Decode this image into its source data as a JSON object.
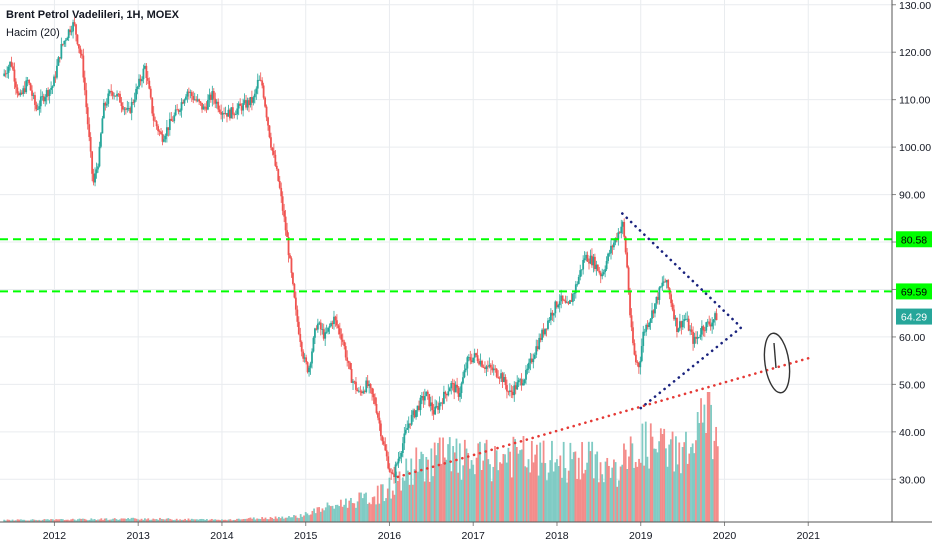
{
  "chart_data": {
    "type": "candlestick",
    "title": "Brent Petrol Vadelileri, 1H, MOEX",
    "subtitle": "Hacim (20)",
    "x_ticks": [
      "2012",
      "2013",
      "2014",
      "2015",
      "2016",
      "2017",
      "2018",
      "2019",
      "2020",
      "2021"
    ],
    "y_ticks": [
      "130.00",
      "120.00",
      "110.00",
      "100.00",
      "90.00",
      "80.00",
      "70.00",
      "60.00",
      "50.00",
      "40.00",
      "30.00"
    ],
    "ylim": [
      21,
      131
    ],
    "xlim": [
      2011.35,
      2022.0
    ],
    "price_series": [
      [
        2011.4,
        115
      ],
      [
        2011.5,
        118
      ],
      [
        2011.6,
        110
      ],
      [
        2011.7,
        114
      ],
      [
        2011.8,
        108
      ],
      [
        2011.9,
        111
      ],
      [
        2012.0,
        113
      ],
      [
        2012.1,
        121
      ],
      [
        2012.2,
        125
      ],
      [
        2012.25,
        126
      ],
      [
        2012.35,
        118
      ],
      [
        2012.45,
        98
      ],
      [
        2012.48,
        92
      ],
      [
        2012.55,
        98
      ],
      [
        2012.6,
        108
      ],
      [
        2012.7,
        112
      ],
      [
        2012.8,
        110
      ],
      [
        2012.9,
        107
      ],
      [
        2013.0,
        112
      ],
      [
        2013.1,
        117
      ],
      [
        2013.2,
        106
      ],
      [
        2013.3,
        102
      ],
      [
        2013.4,
        105
      ],
      [
        2013.5,
        108
      ],
      [
        2013.6,
        112
      ],
      [
        2013.7,
        110
      ],
      [
        2013.8,
        108
      ],
      [
        2013.9,
        111
      ],
      [
        2014.0,
        108
      ],
      [
        2014.1,
        107
      ],
      [
        2014.2,
        108
      ],
      [
        2014.3,
        109
      ],
      [
        2014.4,
        110
      ],
      [
        2014.45,
        114
      ],
      [
        2014.5,
        113
      ],
      [
        2014.55,
        107
      ],
      [
        2014.6,
        101
      ],
      [
        2014.7,
        92
      ],
      [
        2014.8,
        80
      ],
      [
        2014.9,
        65
      ],
      [
        2015.0,
        55
      ],
      [
        2015.05,
        53
      ],
      [
        2015.15,
        63
      ],
      [
        2015.25,
        60
      ],
      [
        2015.35,
        64
      ],
      [
        2015.45,
        60
      ],
      [
        2015.55,
        52
      ],
      [
        2015.65,
        48
      ],
      [
        2015.75,
        50
      ],
      [
        2015.85,
        46
      ],
      [
        2015.95,
        37
      ],
      [
        2016.05,
        30
      ],
      [
        2016.15,
        36
      ],
      [
        2016.25,
        42
      ],
      [
        2016.35,
        45
      ],
      [
        2016.45,
        48
      ],
      [
        2016.55,
        44
      ],
      [
        2016.65,
        47
      ],
      [
        2016.75,
        50
      ],
      [
        2016.85,
        48
      ],
      [
        2016.95,
        55
      ],
      [
        2017.05,
        56
      ],
      [
        2017.15,
        54
      ],
      [
        2017.25,
        53
      ],
      [
        2017.35,
        52
      ],
      [
        2017.45,
        48
      ],
      [
        2017.55,
        50
      ],
      [
        2017.65,
        52
      ],
      [
        2017.75,
        57
      ],
      [
        2017.85,
        61
      ],
      [
        2017.95,
        65
      ],
      [
        2018.05,
        68
      ],
      [
        2018.15,
        66
      ],
      [
        2018.25,
        71
      ],
      [
        2018.35,
        77
      ],
      [
        2018.45,
        76
      ],
      [
        2018.55,
        73
      ],
      [
        2018.65,
        78
      ],
      [
        2018.75,
        82
      ],
      [
        2018.8,
        84
      ],
      [
        2018.85,
        76
      ],
      [
        2018.9,
        62
      ],
      [
        2018.95,
        55
      ],
      [
        2019.0,
        54
      ],
      [
        2019.05,
        61
      ],
      [
        2019.15,
        65
      ],
      [
        2019.25,
        70
      ],
      [
        2019.3,
        72
      ],
      [
        2019.35,
        70
      ],
      [
        2019.45,
        62
      ],
      [
        2019.55,
        64
      ],
      [
        2019.65,
        59
      ],
      [
        2019.7,
        60
      ],
      [
        2019.75,
        62
      ],
      [
        2019.85,
        63
      ],
      [
        2019.92,
        64.3
      ]
    ],
    "volume_series": [
      [
        2011.4,
        0.02
      ],
      [
        2012.0,
        0.02
      ],
      [
        2013.0,
        0.03
      ],
      [
        2014.0,
        0.02
      ],
      [
        2014.9,
        0.05
      ],
      [
        2015.2,
        0.12
      ],
      [
        2015.5,
        0.18
      ],
      [
        2015.8,
        0.22
      ],
      [
        2016.0,
        0.3
      ],
      [
        2016.3,
        0.5
      ],
      [
        2016.6,
        0.6
      ],
      [
        2016.9,
        0.55
      ],
      [
        2017.2,
        0.55
      ],
      [
        2017.5,
        0.6
      ],
      [
        2017.8,
        0.55
      ],
      [
        2018.1,
        0.55
      ],
      [
        2018.4,
        0.55
      ],
      [
        2018.7,
        0.45
      ],
      [
        2019.0,
        0.7
      ],
      [
        2019.3,
        0.65
      ],
      [
        2019.6,
        0.65
      ],
      [
        2019.8,
        1.0
      ],
      [
        2019.92,
        0.6
      ]
    ],
    "horizontal_lines": [
      {
        "label": "80.58",
        "value": 80.58,
        "color": "#00ff00"
      },
      {
        "label": "69.59",
        "value": 69.59,
        "color": "#00ff00"
      }
    ],
    "current_price": {
      "label": "64.29",
      "value": 64.29,
      "color": "#26a69a"
    },
    "trendlines": [
      {
        "name": "support",
        "color": "#e53935",
        "from": [
          2016.1,
          30.5
        ],
        "to": [
          2021.0,
          55.5
        ]
      },
      {
        "name": "upper",
        "color": "#1a237e",
        "from": [
          2018.78,
          86
        ],
        "to": [
          2020.2,
          62
        ]
      },
      {
        "name": "lower",
        "color": "#1a237e",
        "from": [
          2019.0,
          45
        ],
        "to": [
          2020.2,
          62
        ]
      }
    ],
    "colors": {
      "up": "#26a69a",
      "down": "#ef5350",
      "vol_up": "#80cbc4",
      "vol_down": "#f48c8a",
      "grid": "#e9ecef",
      "axis_text": "#131722"
    }
  }
}
